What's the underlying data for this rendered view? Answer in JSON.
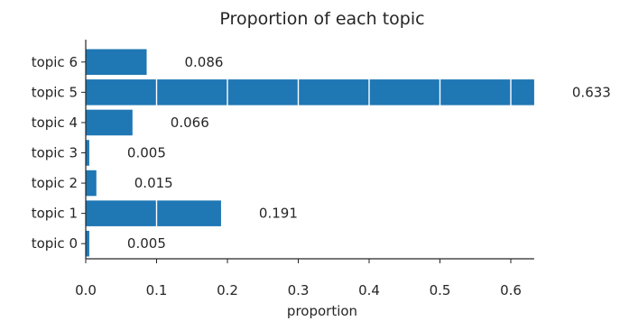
{
  "chart_data": {
    "type": "bar",
    "orientation": "horizontal",
    "title": "Proportion of each topic",
    "xlabel": "proportion",
    "ylabel": "",
    "categories": [
      "topic 0",
      "topic 1",
      "topic 2",
      "topic 3",
      "topic 4",
      "topic 5",
      "topic 6"
    ],
    "values": [
      0.005,
      0.191,
      0.015,
      0.005,
      0.066,
      0.633,
      0.086
    ],
    "data_labels": [
      "0.005",
      "0.191",
      "0.015",
      "0.005",
      "0.066",
      "0.633",
      "0.086"
    ],
    "xticks": [
      "0.0",
      "0.1",
      "0.2",
      "0.3",
      "0.4",
      "0.5",
      "0.6"
    ],
    "xlim": [
      0,
      0.633
    ],
    "grid": "vertical white lines over bars",
    "bar_color": "#1f77b4",
    "legend": "none"
  }
}
